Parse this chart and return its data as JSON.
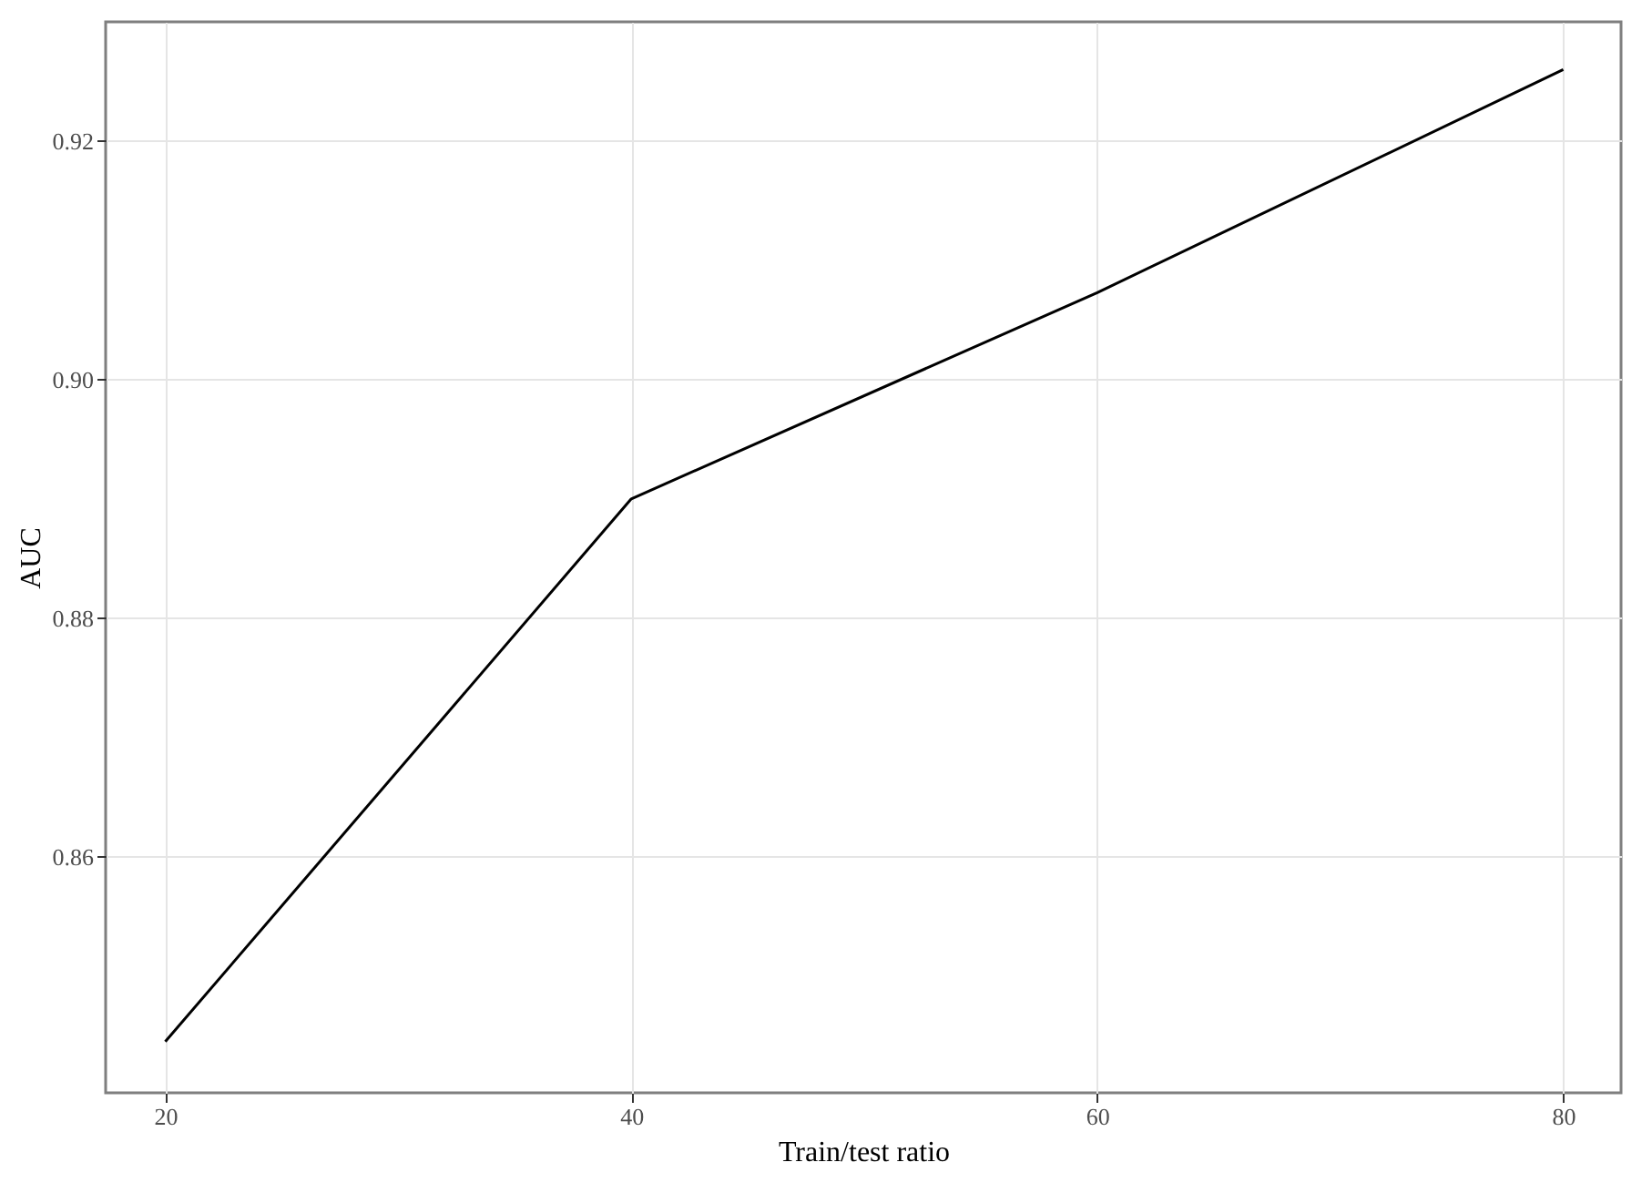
{
  "chart_data": {
    "type": "line",
    "xlabel": "Train/test ratio",
    "ylabel": "AUC",
    "x": [
      20,
      40,
      60,
      80
    ],
    "series": [
      {
        "color": "#000000",
        "values": [
          0.8445,
          0.89,
          0.9073,
          0.926
        ]
      }
    ],
    "xlim": [
      17.44,
      82.48
    ],
    "xticks": [
      20,
      40,
      60,
      80
    ],
    "ylim": [
      0.8402,
      0.93
    ],
    "yticks": [
      0.86,
      0.88,
      {
        "value": 0.9,
        "label": "0.90"
      },
      0.92
    ],
    "grid": true,
    "line_style": "solid",
    "marker": "none"
  }
}
